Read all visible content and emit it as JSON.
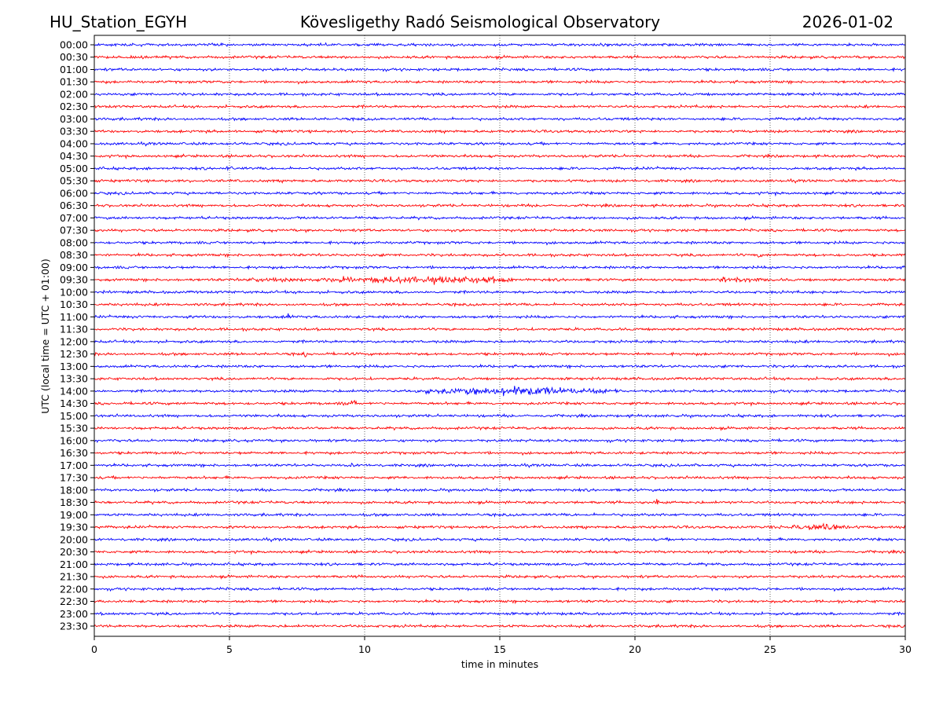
{
  "header": {
    "station": "HU_Station_EGYH",
    "observatory": "Kövesligethy Radó Seismological Observatory",
    "date": "2026-01-02"
  },
  "chart_data": {
    "type": "line",
    "title": "Kövesligethy Radó Seismological Observatory",
    "xlabel": "time in minutes",
    "ylabel": "UTC (local time = UTC + 01:00)",
    "xlim": [
      0,
      30
    ],
    "xticks": [
      0,
      5,
      10,
      15,
      20,
      25,
      30
    ],
    "grid": "vertical dotted at x ticks",
    "row_labels": [
      "00:00",
      "00:30",
      "01:00",
      "01:30",
      "02:00",
      "02:30",
      "03:00",
      "03:30",
      "04:00",
      "04:30",
      "05:00",
      "05:30",
      "06:00",
      "06:30",
      "07:00",
      "07:30",
      "08:00",
      "08:30",
      "09:00",
      "09:30",
      "10:00",
      "10:30",
      "11:00",
      "11:30",
      "12:00",
      "12:30",
      "13:00",
      "13:30",
      "14:00",
      "14:30",
      "15:00",
      "15:30",
      "16:00",
      "16:30",
      "17:00",
      "17:30",
      "18:00",
      "18:30",
      "19:00",
      "19:30",
      "20:00",
      "20:30",
      "21:00",
      "21:30",
      "22:00",
      "22:30",
      "23:00",
      "23:30"
    ],
    "row_colors": [
      "#0000ff",
      "#ff0000"
    ],
    "background_noise_amplitude": 1,
    "events": [
      {
        "row": "09:30",
        "start_min": 5.5,
        "end_min": 15.5,
        "amplitude": 2.2,
        "peak_min": 12.8
      },
      {
        "row": "09:30",
        "start_min": 23.0,
        "end_min": 25.0,
        "amplitude": 1.8,
        "peak_min": 23.6
      },
      {
        "row": "14:00",
        "start_min": 11.7,
        "end_min": 19.5,
        "amplitude": 3.0,
        "peak_min": 15.6
      },
      {
        "row": "19:30",
        "start_min": 25.0,
        "end_min": 28.0,
        "amplitude": 1.8,
        "peak_min": 26.8
      },
      {
        "row": "05:00",
        "start_min": 4.8,
        "end_min": 5.1,
        "amplitude": 2.0,
        "peak_min": 4.95
      },
      {
        "row": "11:00",
        "start_min": 7.1,
        "end_min": 7.3,
        "amplitude": 2.0,
        "peak_min": 7.2
      },
      {
        "row": "17:00",
        "start_min": 9.4,
        "end_min": 9.6,
        "amplitude": 2.2,
        "peak_min": 9.5
      },
      {
        "row": "18:30",
        "start_min": 20.7,
        "end_min": 20.9,
        "amplitude": 2.0,
        "peak_min": 20.8
      },
      {
        "row": "08:30",
        "start_min": 24.5,
        "end_min": 24.8,
        "amplitude": 1.8,
        "peak_min": 24.7
      },
      {
        "row": "12:30",
        "start_min": 7.7,
        "end_min": 7.9,
        "amplitude": 1.8,
        "peak_min": 7.8
      },
      {
        "row": "14:30",
        "start_min": 9.2,
        "end_min": 9.8,
        "amplitude": 1.8,
        "peak_min": 9.5
      }
    ]
  }
}
